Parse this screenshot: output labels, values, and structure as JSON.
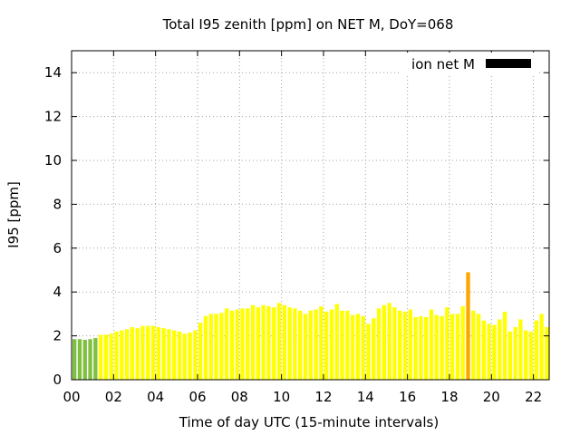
{
  "chart_data": {
    "type": "bar",
    "title": "Total I95 zenith [ppm] on NET M, DoY=068",
    "xlabel": "Time of day UTC (15-minute intervals)",
    "ylabel": "I95 [ppm]",
    "ylim": [
      0,
      15
    ],
    "xlim": [
      0,
      22.75
    ],
    "xticks": [
      0,
      2,
      4,
      6,
      8,
      10,
      12,
      14,
      16,
      18,
      20,
      22
    ],
    "xtick_labels": [
      "00",
      "02",
      "04",
      "06",
      "08",
      "10",
      "12",
      "14",
      "16",
      "18",
      "20",
      "22"
    ],
    "yticks": [
      0,
      2,
      4,
      6,
      8,
      10,
      12,
      14
    ],
    "ytick_labels": [
      "0",
      "2",
      "4",
      "6",
      "8",
      "10",
      "12",
      "14"
    ],
    "grid": true,
    "legend": {
      "label": "ion net M",
      "color": "#000000",
      "placement": "top-right"
    },
    "colors": {
      "low": "#80c040",
      "medium": "#ffff00",
      "high": "#ffa500"
    },
    "series": [
      {
        "x": [
          0.0,
          0.25,
          0.5,
          0.75,
          1.0,
          1.25,
          1.5,
          1.75,
          2.0,
          2.25,
          2.5,
          2.75,
          3.0,
          3.25,
          3.5,
          3.75,
          4.0,
          4.25,
          4.5,
          4.75,
          5.0,
          5.25,
          5.5,
          5.75,
          6.0,
          6.25,
          6.5,
          6.75,
          7.0,
          7.25,
          7.5,
          7.75,
          8.0,
          8.25,
          8.5,
          8.75,
          9.0,
          9.25,
          9.5,
          9.75,
          10.0,
          10.25,
          10.5,
          10.75,
          11.0,
          11.25,
          11.5,
          11.75,
          12.0,
          12.25,
          12.5,
          12.75,
          13.0,
          13.25,
          13.5,
          13.75,
          14.0,
          14.25,
          14.5,
          14.75,
          15.0,
          15.25,
          15.5,
          15.75,
          16.0,
          16.25,
          16.5,
          16.75,
          17.0,
          17.25,
          17.5,
          17.75,
          18.0,
          18.25,
          18.5,
          18.75,
          19.0,
          19.25,
          19.5,
          19.75,
          20.0,
          20.25,
          20.5,
          20.75,
          21.0,
          21.25,
          21.5,
          21.75,
          22.0,
          22.25,
          22.5
        ],
        "values": [
          1.85,
          1.85,
          1.82,
          1.85,
          1.9,
          2.05,
          2.05,
          2.1,
          2.2,
          2.25,
          2.3,
          2.4,
          2.35,
          2.45,
          2.45,
          2.45,
          2.4,
          2.35,
          2.3,
          2.25,
          2.2,
          2.1,
          2.15,
          2.25,
          2.6,
          2.9,
          3.0,
          3.0,
          3.05,
          3.25,
          3.15,
          3.2,
          3.25,
          3.25,
          3.4,
          3.3,
          3.4,
          3.35,
          3.3,
          3.5,
          3.4,
          3.3,
          3.25,
          3.15,
          3.0,
          3.15,
          3.2,
          3.35,
          3.1,
          3.2,
          3.45,
          3.15,
          3.15,
          2.95,
          3.0,
          2.9,
          2.55,
          2.8,
          3.25,
          3.4,
          3.5,
          3.3,
          3.15,
          3.1,
          3.2,
          2.85,
          2.9,
          2.85,
          3.2,
          2.95,
          2.9,
          3.3,
          3.0,
          3.0,
          3.35,
          4.9,
          3.15,
          3.0,
          2.7,
          2.55,
          2.5,
          2.75,
          3.1,
          2.2,
          2.4,
          2.75,
          2.25,
          2.2,
          2.7,
          3.0,
          2.4
        ],
        "levels": [
          "low",
          "low",
          "low",
          "low",
          "low",
          "medium",
          "medium",
          "medium",
          "medium",
          "medium",
          "medium",
          "medium",
          "medium",
          "medium",
          "medium",
          "medium",
          "medium",
          "medium",
          "medium",
          "medium",
          "medium",
          "medium",
          "medium",
          "medium",
          "medium",
          "medium",
          "medium",
          "medium",
          "medium",
          "medium",
          "medium",
          "medium",
          "medium",
          "medium",
          "medium",
          "medium",
          "medium",
          "medium",
          "medium",
          "medium",
          "medium",
          "medium",
          "medium",
          "medium",
          "medium",
          "medium",
          "medium",
          "medium",
          "medium",
          "medium",
          "medium",
          "medium",
          "medium",
          "medium",
          "medium",
          "medium",
          "medium",
          "medium",
          "medium",
          "medium",
          "medium",
          "medium",
          "medium",
          "medium",
          "medium",
          "medium",
          "medium",
          "medium",
          "medium",
          "medium",
          "medium",
          "medium",
          "medium",
          "medium",
          "medium",
          "high",
          "medium",
          "medium",
          "medium",
          "medium",
          "medium",
          "medium",
          "medium",
          "medium",
          "medium",
          "medium",
          "medium",
          "medium",
          "medium",
          "medium",
          "medium"
        ]
      }
    ]
  }
}
